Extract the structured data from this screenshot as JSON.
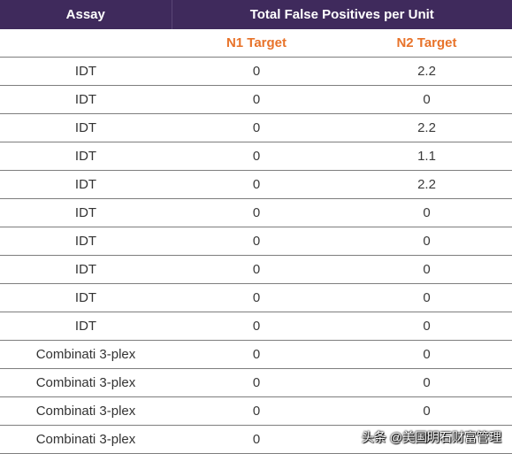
{
  "table": {
    "headers": {
      "assay": "Assay",
      "group": "Total False Positives per Unit"
    },
    "subheaders": {
      "assay": "",
      "n1": "N1 Target",
      "n2": "N2 Target"
    },
    "rows": [
      {
        "assay": "IDT",
        "n1": "0",
        "n2": "2.2"
      },
      {
        "assay": "IDT",
        "n1": "0",
        "n2": "0"
      },
      {
        "assay": "IDT",
        "n1": "0",
        "n2": "2.2"
      },
      {
        "assay": "IDT",
        "n1": "0",
        "n2": "1.1"
      },
      {
        "assay": "IDT",
        "n1": "0",
        "n2": "2.2"
      },
      {
        "assay": "IDT",
        "n1": "0",
        "n2": "0"
      },
      {
        "assay": "IDT",
        "n1": "0",
        "n2": "0"
      },
      {
        "assay": "IDT",
        "n1": "0",
        "n2": "0"
      },
      {
        "assay": "IDT",
        "n1": "0",
        "n2": "0"
      },
      {
        "assay": "IDT",
        "n1": "0",
        "n2": "0"
      },
      {
        "assay": "Combinati 3-plex",
        "n1": "0",
        "n2": "0"
      },
      {
        "assay": "Combinati 3-plex",
        "n1": "0",
        "n2": "0"
      },
      {
        "assay": "Combinati 3-plex",
        "n1": "0",
        "n2": "0"
      },
      {
        "assay": "Combinati 3-plex",
        "n1": "0",
        "n2": "0"
      }
    ]
  },
  "watermark": "头条 @美国明石财富管理",
  "colors": {
    "header_bg": "#3f2a5c",
    "header_text": "#ffffff",
    "subheader_text": "#e8732a",
    "body_text": "#3a3a3a",
    "row_divider": "#7e7e7e"
  }
}
